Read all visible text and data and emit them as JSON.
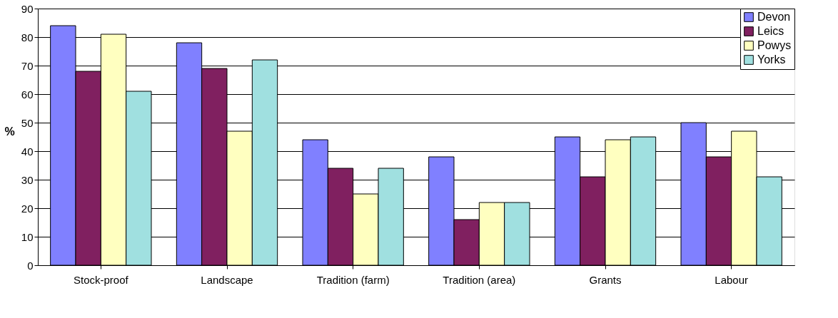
{
  "chart_data": {
    "type": "bar",
    "ylabel": "%",
    "categories": [
      "Stock-proof",
      "Landscape",
      "Tradition (farm)",
      "Tradition (area)",
      "Grants",
      "Labour"
    ],
    "series": [
      {
        "name": "Devon",
        "color": "#8080ff",
        "values": [
          84,
          78,
          44,
          38,
          45,
          50
        ]
      },
      {
        "name": "Leics",
        "color": "#802060",
        "values": [
          68,
          69,
          34,
          16,
          31,
          38
        ]
      },
      {
        "name": "Powys",
        "color": "#ffffc0",
        "values": [
          81,
          47,
          25,
          22,
          44,
          47
        ]
      },
      {
        "name": "Yorks",
        "color": "#a0e0e0",
        "values": [
          61,
          72,
          34,
          22,
          45,
          31
        ]
      }
    ],
    "ylim": [
      0,
      90
    ],
    "yticks": [
      0,
      10,
      20,
      30,
      40,
      50,
      60,
      70,
      80,
      90
    ],
    "grid": "y",
    "legend": "top right"
  }
}
